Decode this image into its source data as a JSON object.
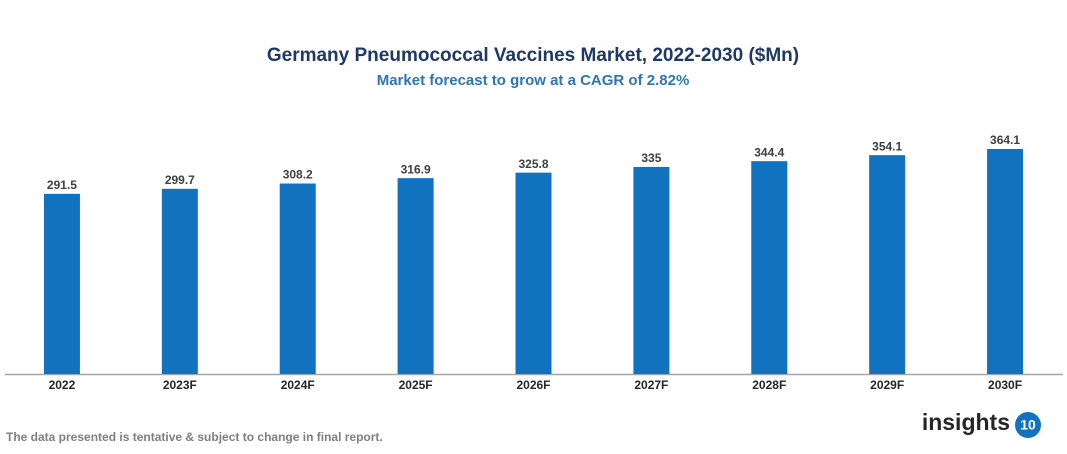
{
  "chart_data": {
    "type": "bar",
    "title": "Germany Pneumococcal Vaccines Market, 2022-2030 ($Mn)",
    "subtitle": "Market forecast to grow at a CAGR of 2.82%",
    "categories": [
      "2022",
      "2023F",
      "2024F",
      "2025F",
      "2026F",
      "2027F",
      "2028F",
      "2029F",
      "2030F"
    ],
    "values": [
      291.5,
      299.7,
      308.2,
      316.9,
      325.8,
      335,
      344.4,
      354.1,
      364.1
    ],
    "color": "#1172bf"
  },
  "footer": {
    "note": "The data presented is tentative & subject to change in final report.",
    "logo": {
      "text": "insights",
      "badge": "10"
    }
  }
}
